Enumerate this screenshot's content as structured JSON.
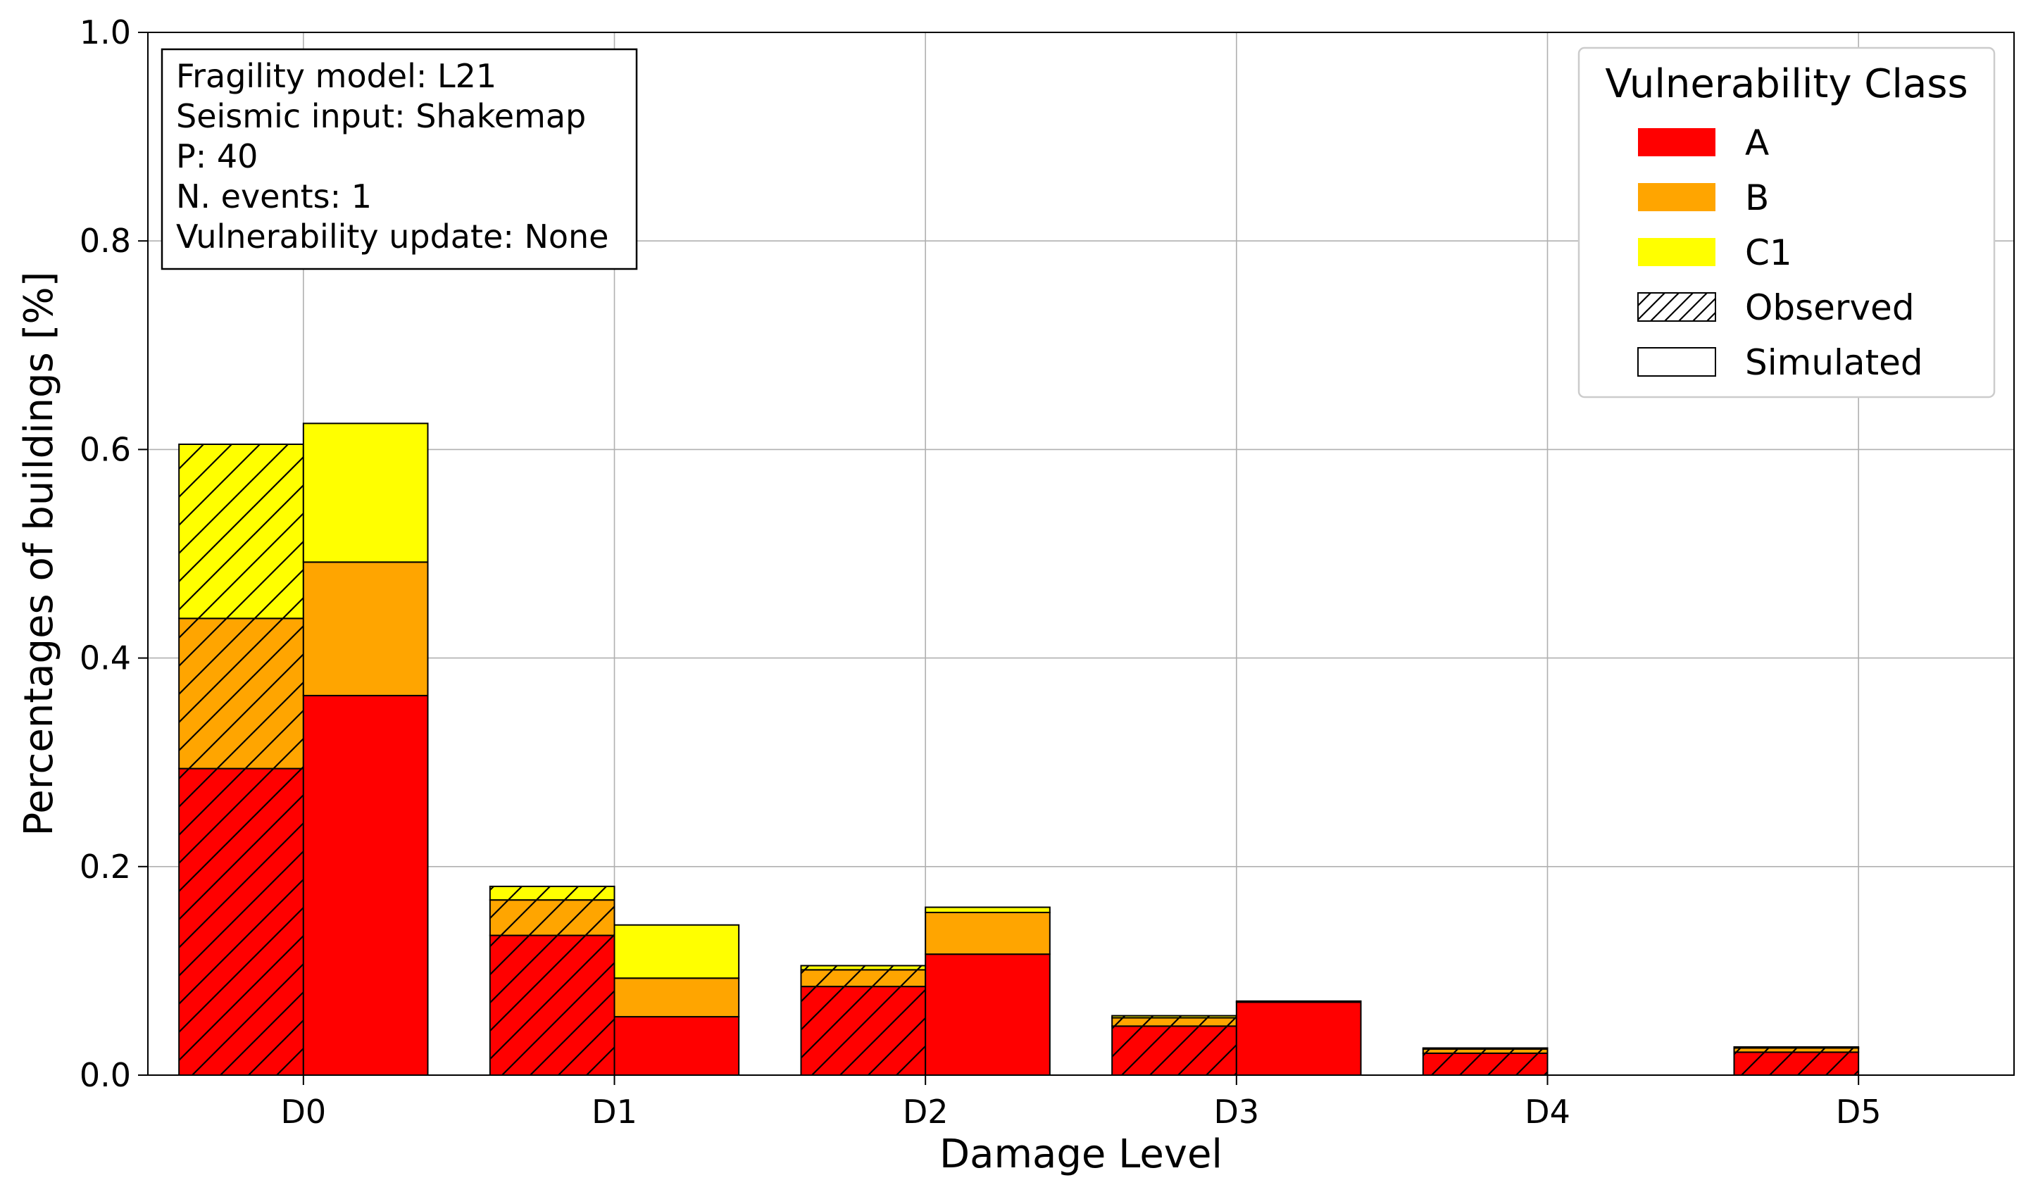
{
  "chart_data": {
    "type": "bar",
    "stacked": true,
    "grouped": true,
    "categories": [
      "D0",
      "D1",
      "D2",
      "D3",
      "D4",
      "D5"
    ],
    "xlabel": "Damage Level",
    "ylabel": "Percentages of buildings [%]",
    "ylim": [
      0.0,
      1.0
    ],
    "yticks": [
      "0.0",
      "0.2",
      "0.4",
      "0.6",
      "0.8",
      "1.0"
    ],
    "grid": true,
    "groups": [
      "Observed",
      "Simulated"
    ],
    "series": [
      {
        "name": "A",
        "color": "#ff0000",
        "observed": [
          0.294,
          0.134,
          0.085,
          0.047,
          0.021,
          0.022
        ],
        "simulated": [
          0.364,
          0.056,
          0.116,
          0.07,
          0.0,
          0.0
        ]
      },
      {
        "name": "B",
        "color": "#ffa500",
        "observed": [
          0.144,
          0.034,
          0.016,
          0.008,
          0.004,
          0.004
        ],
        "simulated": [
          0.128,
          0.037,
          0.04,
          0.001,
          0.0,
          0.0
        ]
      },
      {
        "name": "C1",
        "color": "#ffff00",
        "observed": [
          0.167,
          0.013,
          0.004,
          0.002,
          0.001,
          0.001
        ],
        "simulated": [
          0.133,
          0.051,
          0.005,
          0.0,
          0.0,
          0.0
        ]
      }
    ],
    "info_box": [
      "Fragility model: L21",
      "Seismic input: Shakemap",
      "P: 40",
      "N. events: 1",
      "Vulnerability update: None"
    ],
    "legend": {
      "title": "Vulnerability Class",
      "placement": "top-right",
      "entries": [
        {
          "label": "A",
          "color": "#ff0000",
          "hatch": false
        },
        {
          "label": "B",
          "color": "#ffa500",
          "hatch": false
        },
        {
          "label": "C1",
          "color": "#ffff00",
          "hatch": false
        },
        {
          "label": "Observed",
          "color": "#ffffff",
          "hatch": true
        },
        {
          "label": "Simulated",
          "color": "#ffffff",
          "hatch": false
        }
      ]
    }
  }
}
